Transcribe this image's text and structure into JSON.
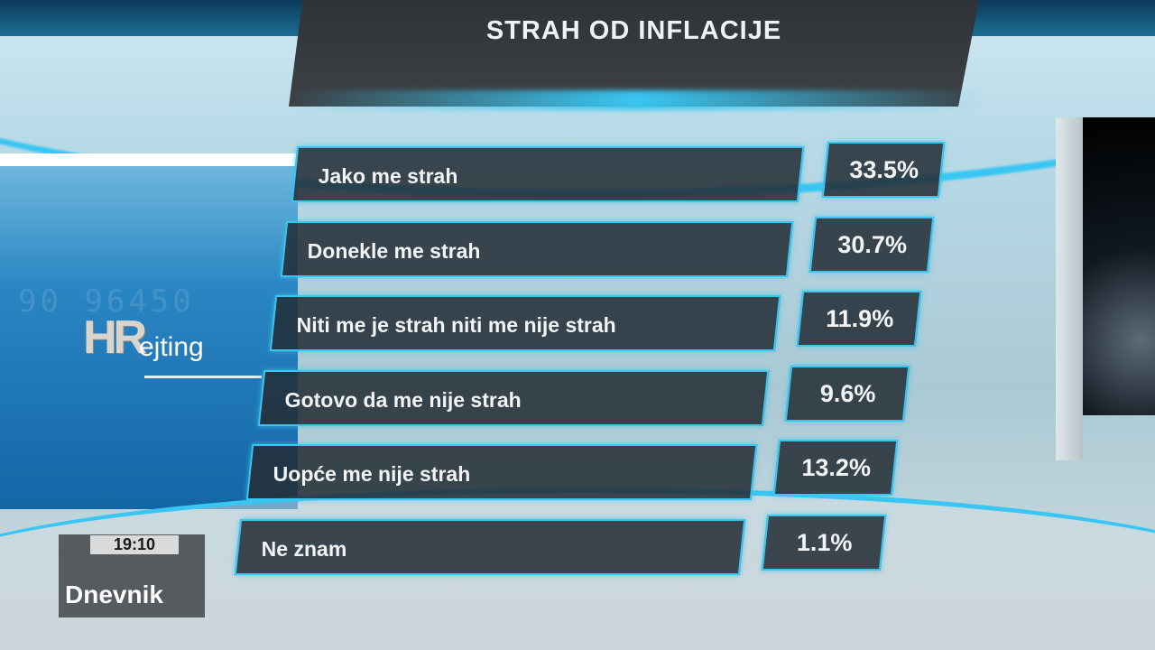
{
  "title": "STRAH OD INFLACIJE",
  "logo": {
    "hr": "HR",
    "ejting": "ejting"
  },
  "clock": "19:10",
  "show": "Dnevnik",
  "rows": [
    {
      "label": "Jako me strah",
      "value": "33.5%"
    },
    {
      "label": "Donekle me strah",
      "value": "30.7%"
    },
    {
      "label": "Niti me je strah niti me nije strah",
      "value": "11.9%"
    },
    {
      "label": "Gotovo da me nije strah",
      "value": "9.6%"
    },
    {
      "label": "Uopće me nije strah",
      "value": "13.2%"
    },
    {
      "label": "Ne znam",
      "value": "1.1%"
    }
  ],
  "colors": {
    "accent": "#3cc6ef",
    "panel": "#232c34"
  }
}
